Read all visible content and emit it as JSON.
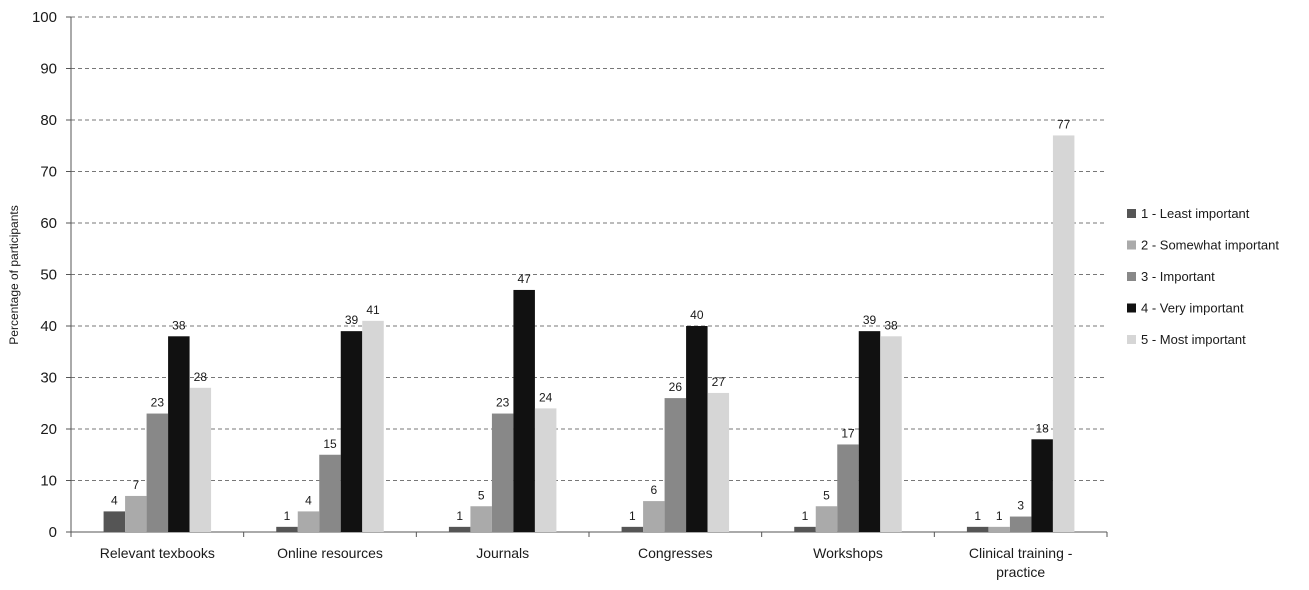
{
  "chart_data": {
    "type": "bar",
    "title": "",
    "xlabel": "",
    "ylabel": "Percentage of participants",
    "ylim": [
      0,
      100
    ],
    "yticks": [
      0,
      10,
      20,
      30,
      40,
      50,
      60,
      70,
      80,
      90,
      100
    ],
    "grid": true,
    "legend_position": "right",
    "categories": [
      "Relevant texbooks",
      "Online resources",
      "Journals",
      "Congresses",
      "Workshops",
      "Clinical training - practice"
    ],
    "series": [
      {
        "name": "1 - Least important",
        "color": "#555555",
        "values": [
          4,
          1,
          1,
          1,
          1,
          1
        ]
      },
      {
        "name": "2 - Somewhat important",
        "color": "#aaaaaa",
        "values": [
          7,
          4,
          5,
          6,
          5,
          1
        ]
      },
      {
        "name": "3 - Important",
        "color": "#888888",
        "values": [
          23,
          15,
          23,
          26,
          17,
          3
        ]
      },
      {
        "name": "4 - Very important",
        "color": "#111111",
        "values": [
          38,
          39,
          47,
          40,
          39,
          18
        ]
      },
      {
        "name": "5 - Most important",
        "color": "#d6d6d6",
        "values": [
          28,
          41,
          24,
          27,
          38,
          77
        ]
      }
    ]
  }
}
